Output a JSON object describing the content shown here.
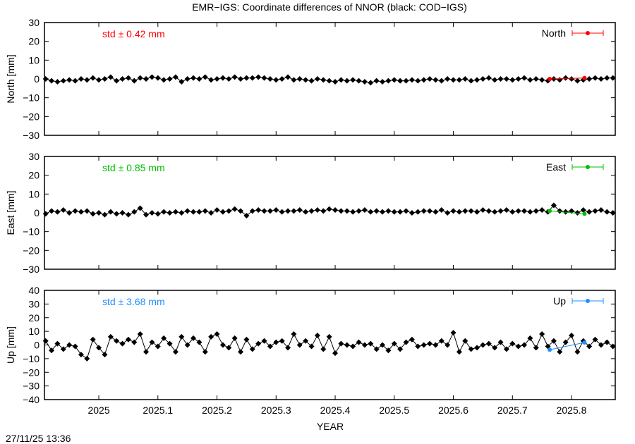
{
  "title": "EMR−IGS: Coordinate differences of NNOR (black: COD−IGS)",
  "timestamp": "27/11/25 13:36",
  "chart_data": [
    {
      "type": "line",
      "ylabel": "North [mm]",
      "ylim": [
        -30,
        30
      ],
      "yticks": [
        "30",
        "20",
        "10",
        "0",
        "−10",
        "−20",
        "−30"
      ],
      "ytick_values": [
        30,
        20,
        10,
        0,
        -10,
        -20,
        -30
      ],
      "xlim": [
        2024.908,
        2025.874
      ],
      "std_label": "std ± 0.42 mm",
      "legend": "North",
      "legend_placement": "top-right",
      "color": "#ff0000",
      "series": [
        {
          "color": "#000000",
          "x_ref": "shared_x",
          "values": [
            0,
            -1,
            -1.5,
            -1,
            -0.5,
            -1,
            0,
            -0.5,
            0.5,
            -0.5,
            0,
            1,
            -1,
            0,
            0.5,
            -1,
            0.5,
            0,
            1,
            0.5,
            -0.5,
            0,
            1,
            -1.5,
            0,
            0.5,
            0,
            1,
            -0.5,
            0,
            0.5,
            0,
            1,
            0,
            0.5,
            0.5,
            1,
            0.5,
            0,
            -0.5,
            0,
            1,
            -0.5,
            0,
            -0.5,
            -1,
            0,
            -0.5,
            -1,
            -1.5,
            -0.5,
            -1,
            -0.5,
            -1,
            -1.5,
            -2,
            -1,
            -1.5,
            -1,
            -0.5,
            -1,
            -1,
            -0.5,
            -1,
            -0.5,
            0,
            -0.5,
            -1,
            0,
            -0.5,
            -0.5,
            0,
            -1,
            -0.5,
            0,
            0.5,
            -0.5,
            0,
            0,
            -0.5,
            0,
            0.5,
            -0.5,
            0,
            -0.5,
            -1,
            0,
            -0.5,
            0.5,
            0,
            -1,
            -0.5,
            0,
            0.5,
            0,
            0.5,
            0.5
          ]
        },
        {
          "color": "#ff0000",
          "x": [
            2025.763,
            2025.822
          ],
          "values": [
            0,
            0.5
          ]
        }
      ]
    },
    {
      "type": "line",
      "ylabel": "East [mm]",
      "ylim": [
        -30,
        30
      ],
      "yticks": [
        "30",
        "20",
        "10",
        "0",
        "−10",
        "−20",
        "−30"
      ],
      "ytick_values": [
        30,
        20,
        10,
        0,
        -10,
        -20,
        -30
      ],
      "xlim": [
        2024.908,
        2025.874
      ],
      "std_label": "std ± 0.85 mm",
      "legend": "East",
      "legend_placement": "top-right",
      "color": "#00c000",
      "series": [
        {
          "color": "#000000",
          "x_ref": "shared_x",
          "values": [
            -0.5,
            1,
            0.5,
            1.5,
            0,
            1,
            0.5,
            1,
            -0.5,
            0,
            -1,
            0.5,
            -0.5,
            0,
            -1,
            0.5,
            2.5,
            -1,
            0,
            -0.5,
            0.5,
            0,
            0.5,
            0,
            1,
            0.5,
            0.5,
            1,
            0,
            1.5,
            0.5,
            1,
            2,
            1,
            -1.5,
            1,
            1.5,
            1,
            1,
            1.5,
            0.5,
            1,
            1,
            1.5,
            0.5,
            1,
            1.5,
            1,
            2,
            1.5,
            1,
            1,
            0.5,
            1,
            1.5,
            0.5,
            1,
            0.5,
            1,
            0.5,
            0.5,
            1,
            0,
            0.5,
            1,
            1,
            0.5,
            1.5,
            0,
            1,
            0.5,
            1,
            1,
            0.5,
            1.5,
            1,
            0.5,
            1,
            1.5,
            0.5,
            1,
            1,
            0.5,
            1,
            1.5,
            0.5,
            4,
            1,
            0.5,
            1,
            0,
            1.5,
            0.5,
            1,
            1.5,
            0.5,
            0
          ]
        },
        {
          "color": "#00c000",
          "x": [
            2025.763,
            2025.822
          ],
          "values": [
            1,
            -0.5
          ]
        }
      ]
    },
    {
      "type": "line",
      "ylabel": "Up [mm]",
      "xlabel": "YEAR",
      "ylim": [
        -40,
        40
      ],
      "yticks": [
        "40",
        "30",
        "20",
        "10",
        "0",
        "−10",
        "−20",
        "−30",
        "−40"
      ],
      "ytick_values": [
        40,
        30,
        20,
        10,
        0,
        -10,
        -20,
        -30,
        -40
      ],
      "xticks": [
        "2025",
        "2025.1",
        "2025.2",
        "2025.3",
        "2025.4",
        "2025.5",
        "2025.6",
        "2025.7",
        "2025.8"
      ],
      "xtick_values": [
        2025,
        2025.1,
        2025.2,
        2025.3,
        2025.4,
        2025.5,
        2025.6,
        2025.7,
        2025.8
      ],
      "xlim": [
        2024.908,
        2025.874
      ],
      "std_label": "std ± 3.68 mm",
      "legend": "Up",
      "legend_placement": "top-right",
      "color": "#1e90ff",
      "series": [
        {
          "color": "#000000",
          "x_ref": "shared_x",
          "values": [
            3,
            -4,
            1,
            -3,
            0,
            -1,
            -7,
            -10,
            4,
            -2,
            -7,
            6,
            3,
            1,
            4,
            2,
            8,
            -5,
            2,
            -1,
            5,
            1,
            -5,
            6,
            0,
            5,
            2,
            -5,
            6,
            8,
            0,
            -2,
            5,
            -5,
            4,
            -3,
            1,
            3,
            -1,
            2,
            3,
            -2,
            8,
            0,
            3,
            -1,
            7,
            -3,
            6,
            -6,
            1,
            0,
            -1,
            2,
            0,
            1,
            -3,
            0,
            -4,
            1,
            -3,
            2,
            4,
            -1,
            0,
            1,
            0,
            3,
            0,
            9,
            -5,
            3,
            -3,
            -2,
            0,
            1,
            -2,
            2,
            -3,
            1,
            -1,
            0,
            5,
            -2,
            8,
            -1,
            3,
            -5,
            2,
            7,
            -5,
            3,
            -1,
            4,
            0,
            2,
            -1
          ]
        },
        {
          "color": "#1e90ff",
          "x": [
            2025.763,
            2025.822
          ],
          "values": [
            -3.5,
            1.8
          ]
        }
      ]
    }
  ],
  "shared_x_range": [
    2024.91,
    2025.87
  ]
}
